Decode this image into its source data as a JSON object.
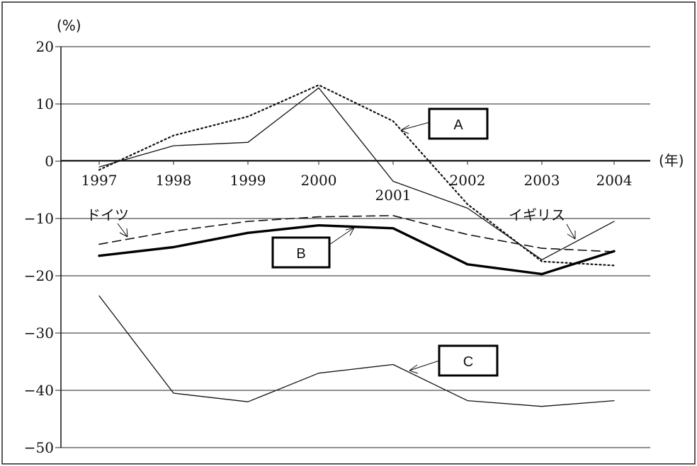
{
  "chart_data": {
    "type": "line",
    "y_unit": "(%)",
    "x_unit": "(年)",
    "x": [
      "1997",
      "1998",
      "1999",
      "2000",
      "2001",
      "2002",
      "2003",
      "2004"
    ],
    "ylim": [
      -50,
      20
    ],
    "yticks": [
      20,
      10,
      0,
      -10,
      -20,
      -30,
      -40,
      -50
    ],
    "ytick_labels": [
      "20",
      "10",
      "0",
      "−10",
      "−20",
      "−30",
      "−40",
      "−50"
    ],
    "grid": true,
    "series": [
      {
        "name": "A",
        "style": "dotted",
        "color": "#111111",
        "values": [
          -1.5,
          4.5,
          7.8,
          13.3,
          7.0,
          -7.5,
          -17.5,
          -18.2
        ]
      },
      {
        "name": "イギリス",
        "style": "solid-thin",
        "color": "#111111",
        "values": [
          -1.0,
          2.7,
          3.3,
          12.8,
          -3.5,
          -8.2,
          -17.2,
          -10.5
        ]
      },
      {
        "name": "ドイツ",
        "style": "dashed",
        "color": "#111111",
        "values": [
          -14.5,
          -12.2,
          -10.5,
          -9.7,
          -9.5,
          -12.8,
          -15.2,
          -15.8
        ]
      },
      {
        "name": "B",
        "style": "solid-thick",
        "color": "#000000",
        "values": [
          -16.5,
          -15.0,
          -12.5,
          -11.2,
          -11.7,
          -18.0,
          -19.7,
          -15.7
        ]
      },
      {
        "name": "C",
        "style": "solid-thin",
        "color": "#111111",
        "values": [
          -23.5,
          -40.5,
          -42.0,
          -37.0,
          -35.5,
          -41.8,
          -42.8,
          -41.8
        ]
      }
    ],
    "annotations": {
      "box_a": "A",
      "box_b": "B",
      "box_c": "C",
      "label_germany": "ドイツ",
      "label_uk": "イギリス"
    }
  }
}
